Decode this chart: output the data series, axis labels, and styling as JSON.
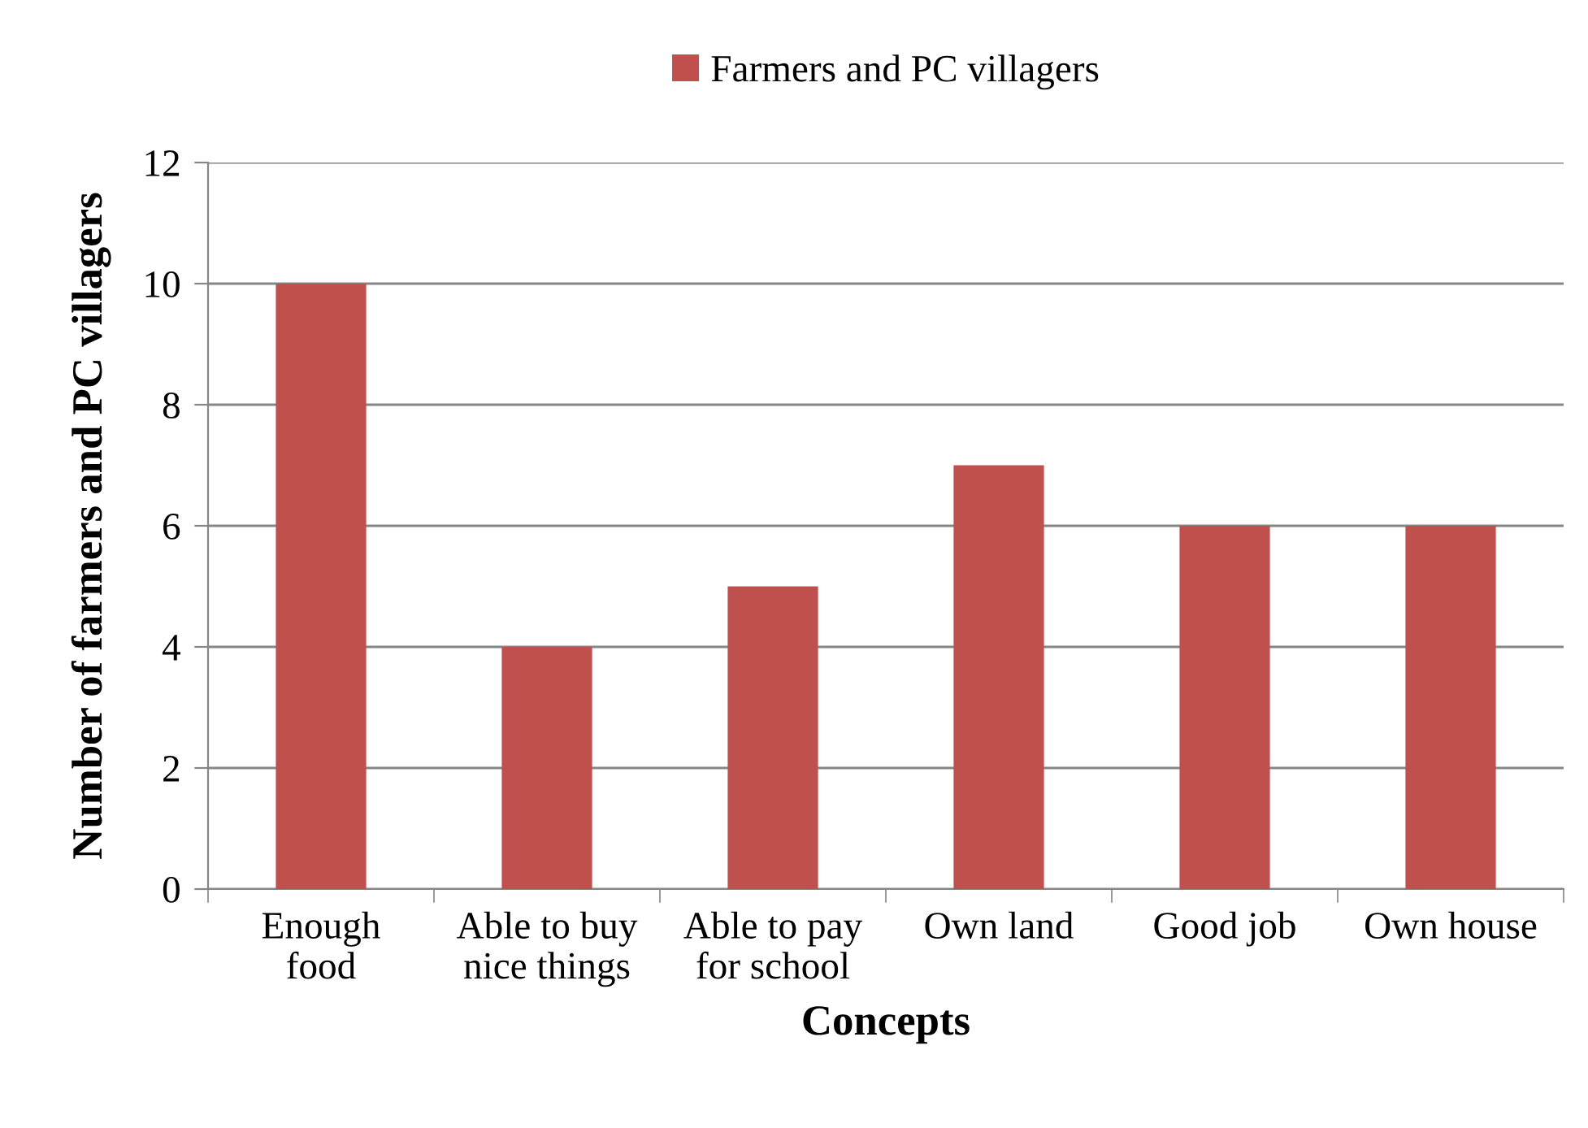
{
  "chart_data": {
    "type": "bar",
    "xlabel": "Concepts",
    "ylabel": "Number of farmers and PC villagers",
    "categories": [
      "Enough\nfood",
      "Able to buy\nnice things",
      "Able to pay\nfor school",
      "Own land",
      "Good job",
      "Own house"
    ],
    "series": [
      {
        "name": "Farmers and PC villagers",
        "color": "#c0504d",
        "values": [
          10,
          4,
          5,
          7,
          6,
          6
        ]
      }
    ],
    "ylim": [
      0,
      12
    ],
    "yticks": [
      0,
      2,
      4,
      6,
      8,
      10,
      12
    ],
    "grid": "y",
    "legend": "top"
  }
}
